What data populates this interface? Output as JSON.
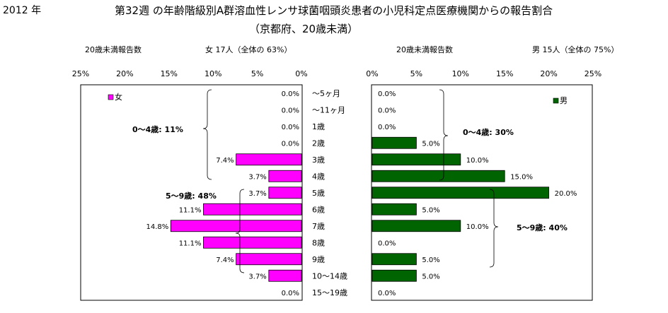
{
  "header": {
    "year": "2012 年",
    "title_line1": "第32週 の年齢階級別A群溶血性レンサ球菌咽頭炎患者の小児科定点医療機関からの報告割合",
    "title_line2": "（京都府、20歳未満）"
  },
  "female": {
    "count_label": "20歳未満報告数",
    "summary": "女 17人（全体の 63%）",
    "legend": "女",
    "color": "#ff00ff",
    "group_labels": [
      "0～4歳: 11%",
      "5～9歳: 48%"
    ]
  },
  "male": {
    "count_label": "20歳未満報告数",
    "summary": "男 15人（全体の 75%）",
    "legend": "男",
    "color": "#006400",
    "group_labels": [
      "0～4歳: 30%",
      "5～9歳: 40%"
    ]
  },
  "chart_data": {
    "type": "bar",
    "orientation": "horizontal",
    "layout": "population-pyramid",
    "categories": [
      "～5ヶ月",
      "～11ヶ月",
      "1歳",
      "2歳",
      "3歳",
      "4歳",
      "5歳",
      "6歳",
      "7歳",
      "8歳",
      "9歳",
      "10～14歳",
      "15～19歳"
    ],
    "xlim": [
      0,
      25
    ],
    "ticks": [
      "0%",
      "5%",
      "10%",
      "15%",
      "20%",
      "25%"
    ],
    "series": [
      {
        "name": "女",
        "values": [
          0.0,
          0.0,
          0.0,
          0.0,
          7.4,
          3.7,
          3.7,
          11.1,
          14.8,
          11.1,
          7.4,
          3.7,
          0.0
        ],
        "labels": [
          "0.0%",
          "0.0%",
          "0.0%",
          "0.0%",
          "7.4%",
          "3.7%",
          "3.7%",
          "11.1%",
          "14.8%",
          "11.1%",
          "7.4%",
          "3.7%",
          "0.0%"
        ]
      },
      {
        "name": "男",
        "values": [
          0.0,
          0.0,
          0.0,
          5.0,
          10.0,
          15.0,
          20.0,
          5.0,
          10.0,
          0.0,
          5.0,
          5.0,
          0.0
        ],
        "labels": [
          "0.0%",
          "0.0%",
          "0.0%",
          "5.0%",
          "10.0%",
          "15.0%",
          "20.0%",
          "5.0%",
          "10.0%",
          "0.0%",
          "5.0%",
          "5.0%",
          "0.0%"
        ]
      }
    ]
  }
}
